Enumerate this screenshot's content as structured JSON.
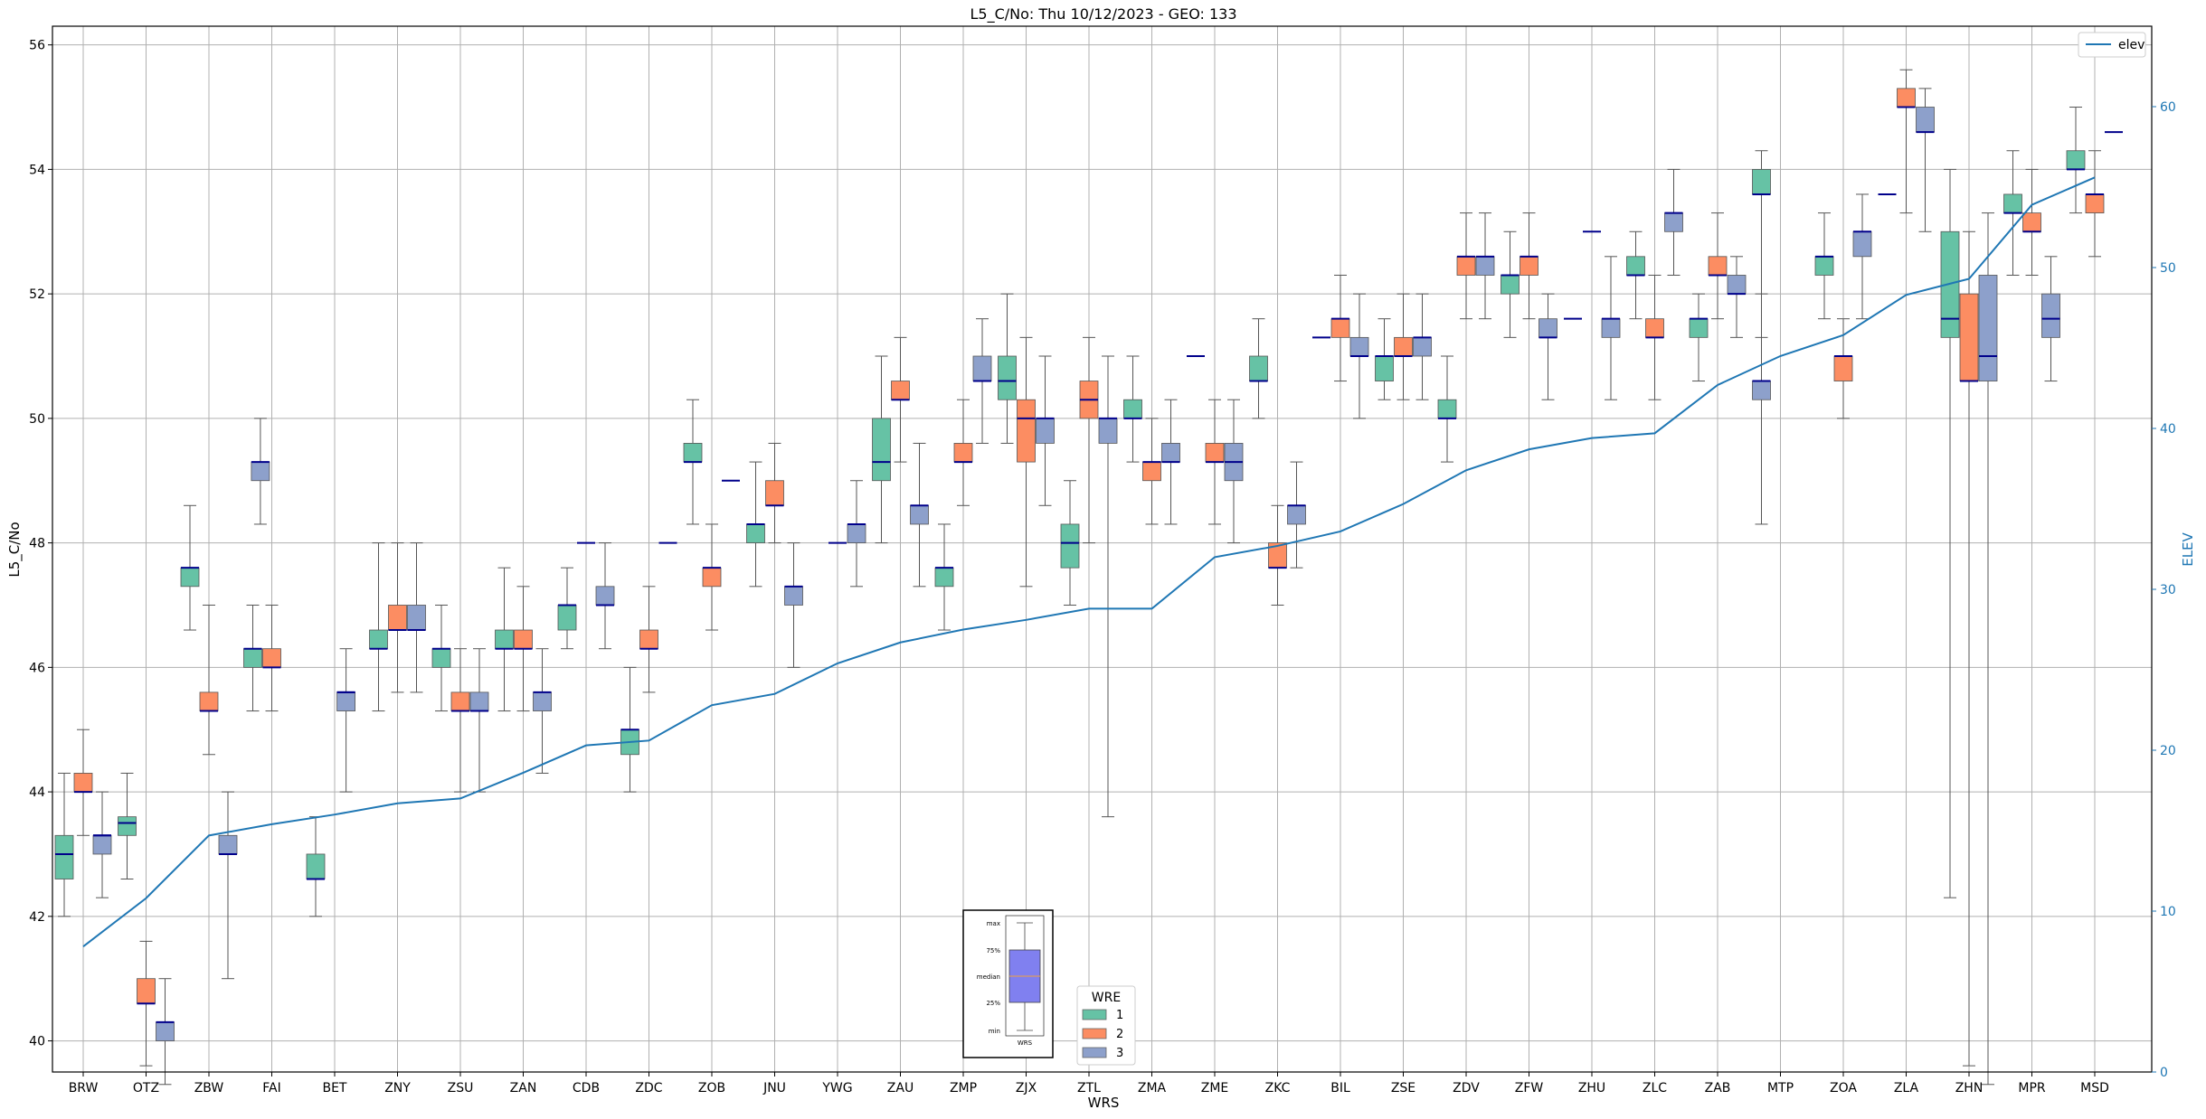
{
  "chart_data": {
    "type": "box",
    "title": "L5_C/No: Thu 10/12/2023 - GEO: 133",
    "xlabel": "WRS",
    "ylabel": "L5_C/No",
    "y2label": "ELEV",
    "ylim": [
      39.5,
      56.3
    ],
    "y2lim": [
      0,
      65
    ],
    "yticks": [
      40,
      42,
      44,
      46,
      48,
      50,
      52,
      54,
      56
    ],
    "y2ticks": [
      0,
      10,
      20,
      30,
      40,
      50,
      60
    ],
    "grid": true,
    "categories": [
      "BRW",
      "OTZ",
      "ZBW",
      "FAI",
      "BET",
      "ZNY",
      "ZSU",
      "ZAN",
      "CDB",
      "ZDC",
      "ZOB",
      "JNU",
      "YWG",
      "ZAU",
      "ZMP",
      "ZJX",
      "ZTL",
      "ZMA",
      "ZME",
      "ZKC",
      "BIL",
      "ZSE",
      "ZDV",
      "ZFW",
      "ZHU",
      "ZLC",
      "ZAB",
      "MTP",
      "ZOA",
      "ZLA",
      "ZHN",
      "MPR",
      "MSD"
    ],
    "series": [
      {
        "name": "1",
        "color": "#66c2a5",
        "boxes": [
          {
            "cat": 0,
            "pos": -0.5,
            "min": 42.0,
            "q1": 42.6,
            "med": 43.0,
            "q3": 43.3,
            "max": 44.3
          },
          {
            "cat": 1,
            "pos": -0.5,
            "min": 42.6,
            "q1": 43.3,
            "med": 43.5,
            "q3": 43.6,
            "max": 44.3
          },
          {
            "cat": 2,
            "pos": -0.5,
            "min": 46.6,
            "q1": 47.3,
            "med": 47.6,
            "q3": 47.6,
            "max": 48.6
          },
          {
            "cat": 3,
            "pos": -0.5,
            "min": 45.3,
            "q1": 46.0,
            "med": 46.3,
            "q3": 46.3,
            "max": 47.0
          },
          {
            "cat": 4,
            "pos": -0.5,
            "min": 42.0,
            "q1": 42.6,
            "med": 42.6,
            "q3": 43.0,
            "max": 43.6
          },
          {
            "cat": 5,
            "pos": -0.5,
            "min": 45.3,
            "q1": 46.3,
            "med": 46.3,
            "q3": 46.6,
            "max": 48.0
          },
          {
            "cat": 6,
            "pos": -0.5,
            "min": 45.3,
            "q1": 46.0,
            "med": 46.3,
            "q3": 46.3,
            "max": 47.0
          },
          {
            "cat": 7,
            "pos": -0.5,
            "min": 45.3,
            "q1": 46.3,
            "med": 46.3,
            "q3": 46.6,
            "max": 47.6
          },
          {
            "cat": 8,
            "pos": -0.5,
            "min": 46.3,
            "q1": 46.6,
            "med": 47.0,
            "q3": 47.0,
            "max": 47.6
          },
          {
            "cat": 9,
            "pos": -0.5,
            "min": 44.0,
            "q1": 44.6,
            "med": 45.0,
            "q3": 45.0,
            "max": 46.0
          },
          {
            "cat": 10,
            "pos": -0.5,
            "min": 48.3,
            "q1": 49.3,
            "med": 49.3,
            "q3": 49.6,
            "max": 50.3
          },
          {
            "cat": 11,
            "pos": -0.5,
            "min": 47.3,
            "q1": 48.0,
            "med": 48.3,
            "q3": 48.3,
            "max": 49.3
          },
          {
            "cat": 13,
            "pos": -0.5,
            "min": 48.0,
            "q1": 49.0,
            "med": 49.3,
            "q3": 50.0,
            "max": 51.0
          },
          {
            "cat": 14,
            "pos": -0.5,
            "min": 46.6,
            "q1": 47.3,
            "med": 47.6,
            "q3": 47.6,
            "max": 48.3
          },
          {
            "cat": 15,
            "pos": -0.5,
            "min": 49.6,
            "q1": 50.3,
            "med": 50.6,
            "q3": 51.0,
            "max": 52.0
          },
          {
            "cat": 16,
            "pos": -0.5,
            "min": 47.0,
            "q1": 47.6,
            "med": 48.0,
            "q3": 48.3,
            "max": 49.0
          },
          {
            "cat": 17,
            "pos": -0.5,
            "min": 49.3,
            "q1": 50.0,
            "med": 50.0,
            "q3": 50.3,
            "max": 51.0
          },
          {
            "cat": 19,
            "pos": -0.5,
            "min": 50.0,
            "q1": 50.6,
            "med": 50.6,
            "q3": 51.0,
            "max": 51.6
          },
          {
            "cat": 21,
            "pos": -0.5,
            "min": 50.3,
            "q1": 50.6,
            "med": 51.0,
            "q3": 51.0,
            "max": 51.6
          },
          {
            "cat": 22,
            "pos": -0.5,
            "min": 49.3,
            "q1": 50.0,
            "med": 50.0,
            "q3": 50.3,
            "max": 51.0
          },
          {
            "cat": 23,
            "pos": -0.5,
            "min": 51.3,
            "q1": 52.0,
            "med": 52.3,
            "q3": 52.3,
            "max": 53.0
          },
          {
            "cat": 25,
            "pos": -0.5,
            "min": 51.6,
            "q1": 52.3,
            "med": 52.3,
            "q3": 52.6,
            "max": 53.0
          },
          {
            "cat": 26,
            "pos": -0.5,
            "min": 50.6,
            "q1": 51.3,
            "med": 51.6,
            "q3": 51.6,
            "max": 52.0
          },
          {
            "cat": 27,
            "pos": -0.5,
            "min": 51.3,
            "q1": 53.6,
            "med": 53.6,
            "q3": 54.0,
            "max": 54.3
          },
          {
            "cat": 28,
            "pos": -0.5,
            "min": 51.6,
            "q1": 52.3,
            "med": 52.6,
            "q3": 52.6,
            "max": 53.3
          },
          {
            "cat": 30,
            "pos": -0.5,
            "min": 42.3,
            "q1": 51.3,
            "med": 51.6,
            "q3": 53.0,
            "max": 54.0
          },
          {
            "cat": 31,
            "pos": -0.5,
            "min": 52.3,
            "q1": 53.3,
            "med": 53.3,
            "q3": 53.6,
            "max": 54.3
          },
          {
            "cat": 32,
            "pos": -0.5,
            "min": 53.3,
            "q1": 54.0,
            "med": 54.0,
            "q3": 54.3,
            "max": 55.0
          }
        ]
      },
      {
        "name": "2",
        "color": "#fc8d62",
        "boxes": [
          {
            "cat": 0,
            "pos": 0,
            "min": 43.3,
            "q1": 44.0,
            "med": 44.0,
            "q3": 44.3,
            "max": 45.0
          },
          {
            "cat": 1,
            "pos": 0,
            "min": 39.6,
            "q1": 40.6,
            "med": 40.6,
            "q3": 41.0,
            "max": 41.6
          },
          {
            "cat": 2,
            "pos": 0,
            "min": 44.6,
            "q1": 45.3,
            "med": 45.3,
            "q3": 45.6,
            "max": 47.0
          },
          {
            "cat": 3,
            "pos": 0,
            "min": 45.3,
            "q1": 46.0,
            "med": 46.0,
            "q3": 46.3,
            "max": 47.0
          },
          {
            "cat": 5,
            "pos": 0,
            "min": 45.6,
            "q1": 46.6,
            "med": 46.6,
            "q3": 47.0,
            "max": 48.0
          },
          {
            "cat": 6,
            "pos": 0,
            "min": 44.0,
            "q1": 45.3,
            "med": 45.3,
            "q3": 45.6,
            "max": 46.3
          },
          {
            "cat": 7,
            "pos": 0,
            "min": 45.3,
            "q1": 46.3,
            "med": 46.3,
            "q3": 46.6,
            "max": 47.3
          },
          {
            "cat": 9,
            "pos": 0,
            "min": 45.6,
            "q1": 46.3,
            "med": 46.3,
            "q3": 46.6,
            "max": 47.3
          },
          {
            "cat": 10,
            "pos": 0,
            "min": 46.6,
            "q1": 47.3,
            "med": 47.6,
            "q3": 47.6,
            "max": 48.3
          },
          {
            "cat": 11,
            "pos": 0,
            "min": 48.0,
            "q1": 48.6,
            "med": 48.6,
            "q3": 49.0,
            "max": 49.6
          },
          {
            "cat": 13,
            "pos": 0,
            "min": 49.3,
            "q1": 50.3,
            "med": 50.3,
            "q3": 50.6,
            "max": 51.3
          },
          {
            "cat": 14,
            "pos": 0,
            "min": 48.6,
            "q1": 49.3,
            "med": 49.3,
            "q3": 49.6,
            "max": 50.3
          },
          {
            "cat": 15,
            "pos": 0,
            "min": 47.3,
            "q1": 49.3,
            "med": 50.0,
            "q3": 50.3,
            "max": 51.3
          },
          {
            "cat": 16,
            "pos": 0,
            "min": 48.0,
            "q1": 50.0,
            "med": 50.3,
            "q3": 50.6,
            "max": 51.3
          },
          {
            "cat": 17,
            "pos": 0,
            "min": 48.3,
            "q1": 49.0,
            "med": 49.3,
            "q3": 49.3,
            "max": 50.0
          },
          {
            "cat": 18,
            "pos": 0,
            "min": 48.3,
            "q1": 49.3,
            "med": 49.3,
            "q3": 49.6,
            "max": 50.3
          },
          {
            "cat": 19,
            "pos": 0,
            "min": 47.0,
            "q1": 47.6,
            "med": 47.6,
            "q3": 48.0,
            "max": 48.6
          },
          {
            "cat": 20,
            "pos": 0,
            "min": 50.6,
            "q1": 51.3,
            "med": 51.6,
            "q3": 51.6,
            "max": 52.3
          },
          {
            "cat": 21,
            "pos": 0,
            "min": 50.3,
            "q1": 51.0,
            "med": 51.0,
            "q3": 51.3,
            "max": 52.0
          },
          {
            "cat": 22,
            "pos": 0,
            "min": 51.6,
            "q1": 52.3,
            "med": 52.6,
            "q3": 52.6,
            "max": 53.3
          },
          {
            "cat": 23,
            "pos": 0,
            "min": 51.6,
            "q1": 52.3,
            "med": 52.6,
            "q3": 52.6,
            "max": 53.3
          },
          {
            "cat": 25,
            "pos": 0,
            "min": 50.3,
            "q1": 51.3,
            "med": 51.3,
            "q3": 51.6,
            "max": 52.3
          },
          {
            "cat": 26,
            "pos": 0,
            "min": 51.6,
            "q1": 52.3,
            "med": 52.3,
            "q3": 52.6,
            "max": 53.3
          },
          {
            "cat": 28,
            "pos": 0,
            "min": 50.0,
            "q1": 50.6,
            "med": 51.0,
            "q3": 51.0,
            "max": 51.6
          },
          {
            "cat": 29,
            "pos": 0,
            "min": 53.3,
            "q1": 55.0,
            "med": 55.0,
            "q3": 55.3,
            "max": 55.6
          },
          {
            "cat": 30,
            "pos": 0,
            "min": 39.6,
            "q1": 50.6,
            "med": 50.6,
            "q3": 52.0,
            "max": 53.0
          },
          {
            "cat": 31,
            "pos": 0,
            "min": 52.3,
            "q1": 53.0,
            "med": 53.0,
            "q3": 53.3,
            "max": 54.0
          },
          {
            "cat": 32,
            "pos": 0,
            "min": 52.6,
            "q1": 53.3,
            "med": 53.6,
            "q3": 53.6,
            "max": 54.3
          }
        ]
      },
      {
        "name": "3",
        "color": "#8da0cb",
        "boxes": [
          {
            "cat": 0,
            "pos": 0.5,
            "min": 42.3,
            "q1": 43.0,
            "med": 43.3,
            "q3": 43.3,
            "max": 44.0
          },
          {
            "cat": 1,
            "pos": 0.5,
            "min": 39.3,
            "q1": 40.0,
            "med": 40.3,
            "q3": 40.3,
            "max": 41.0
          },
          {
            "cat": 2,
            "pos": 0.5,
            "min": 41.0,
            "q1": 43.0,
            "med": 43.0,
            "q3": 43.3,
            "max": 44.0
          },
          {
            "cat": 3,
            "pos": -0.3,
            "min": 48.3,
            "q1": 49.0,
            "med": 49.3,
            "q3": 49.3,
            "max": 50.0
          },
          {
            "cat": 4,
            "pos": 0.3,
            "min": 44.0,
            "q1": 45.3,
            "med": 45.6,
            "q3": 45.6,
            "max": 46.3
          },
          {
            "cat": 5,
            "pos": 0.5,
            "min": 45.6,
            "q1": 46.6,
            "med": 46.6,
            "q3": 47.0,
            "max": 48.0
          },
          {
            "cat": 6,
            "pos": 0.5,
            "min": 44.0,
            "q1": 45.3,
            "med": 45.3,
            "q3": 45.6,
            "max": 46.3
          },
          {
            "cat": 7,
            "pos": 0.5,
            "min": 44.3,
            "q1": 45.3,
            "med": 45.6,
            "q3": 45.6,
            "max": 46.3
          },
          {
            "cat": 8,
            "pos": 0.5,
            "min": 46.3,
            "q1": 47.0,
            "med": 47.0,
            "q3": 47.3,
            "max": 48.0
          },
          {
            "cat": 11,
            "pos": 0.5,
            "min": 46.0,
            "q1": 47.0,
            "med": 47.3,
            "q3": 47.3,
            "max": 48.0
          },
          {
            "cat": 12,
            "pos": 0.5,
            "min": 47.3,
            "q1": 48.0,
            "med": 48.3,
            "q3": 48.3,
            "max": 49.0
          },
          {
            "cat": 13,
            "pos": 0.5,
            "min": 47.3,
            "q1": 48.3,
            "med": 48.6,
            "q3": 48.6,
            "max": 49.6
          },
          {
            "cat": 14,
            "pos": 0.5,
            "min": 49.6,
            "q1": 50.6,
            "med": 50.6,
            "q3": 51.0,
            "max": 51.6
          },
          {
            "cat": 15,
            "pos": 0.5,
            "min": 48.6,
            "q1": 49.6,
            "med": 50.0,
            "q3": 50.0,
            "max": 51.0
          },
          {
            "cat": 16,
            "pos": 0.5,
            "min": 43.6,
            "q1": 49.6,
            "med": 50.0,
            "q3": 50.0,
            "max": 51.0
          },
          {
            "cat": 17,
            "pos": 0.5,
            "min": 48.3,
            "q1": 49.3,
            "med": 49.3,
            "q3": 49.6,
            "max": 50.3
          },
          {
            "cat": 18,
            "pos": 0.5,
            "min": 48.0,
            "q1": 49.0,
            "med": 49.3,
            "q3": 49.6,
            "max": 50.3
          },
          {
            "cat": 19,
            "pos": 0.5,
            "min": 47.6,
            "q1": 48.3,
            "med": 48.6,
            "q3": 48.6,
            "max": 49.3
          },
          {
            "cat": 20,
            "pos": 0.5,
            "min": 50.0,
            "q1": 51.0,
            "med": 51.0,
            "q3": 51.3,
            "max": 52.0
          },
          {
            "cat": 21,
            "pos": 0.5,
            "min": 50.3,
            "q1": 51.0,
            "med": 51.3,
            "q3": 51.3,
            "max": 52.0
          },
          {
            "cat": 22,
            "pos": 0.5,
            "min": 51.6,
            "q1": 52.3,
            "med": 52.6,
            "q3": 52.6,
            "max": 53.3
          },
          {
            "cat": 23,
            "pos": 0.5,
            "min": 50.3,
            "q1": 51.3,
            "med": 51.3,
            "q3": 51.6,
            "max": 52.0
          },
          {
            "cat": 24,
            "pos": 0.5,
            "min": 50.3,
            "q1": 51.3,
            "med": 51.6,
            "q3": 51.6,
            "max": 52.6
          },
          {
            "cat": 25,
            "pos": 0.5,
            "min": 52.3,
            "q1": 53.0,
            "med": 53.3,
            "q3": 53.3,
            "max": 54.0
          },
          {
            "cat": 26,
            "pos": 0.5,
            "min": 51.3,
            "q1": 52.0,
            "med": 52.0,
            "q3": 52.3,
            "max": 52.6
          },
          {
            "cat": 27,
            "pos": -0.5,
            "min": 48.3,
            "q1": 50.3,
            "med": 50.6,
            "q3": 50.6,
            "max": 52.0
          },
          {
            "cat": 28,
            "pos": 0.5,
            "min": 51.6,
            "q1": 52.6,
            "med": 53.0,
            "q3": 53.0,
            "max": 53.6
          },
          {
            "cat": 29,
            "pos": 0.5,
            "min": 53.0,
            "q1": 54.6,
            "med": 54.6,
            "q3": 55.0,
            "max": 55.3
          },
          {
            "cat": 30,
            "pos": 0.5,
            "min": 39.3,
            "q1": 50.6,
            "med": 51.0,
            "q3": 52.3,
            "max": 53.3
          },
          {
            "cat": 31,
            "pos": 0.5,
            "min": 50.6,
            "q1": 51.3,
            "med": 51.6,
            "q3": 52.0,
            "max": 52.6
          }
        ]
      }
    ],
    "single_values": [
      {
        "cat": 0,
        "pos": 0.5,
        "value": 43.3
      },
      {
        "cat": 4,
        "pos": 0.3,
        "value": 45.6
      },
      {
        "cat": 8,
        "pos": 0,
        "value": 48.0
      },
      {
        "cat": 9,
        "pos": 0.5,
        "value": 48.0
      },
      {
        "cat": 10,
        "pos": 0.5,
        "value": 49.0
      },
      {
        "cat": 12,
        "pos": 0,
        "value": 48.0
      },
      {
        "cat": 18,
        "pos": -0.5,
        "value": 51.0
      },
      {
        "cat": 20,
        "pos": -0.5,
        "value": 51.3
      },
      {
        "cat": 24,
        "pos": -0.5,
        "value": 51.6
      },
      {
        "cat": 24,
        "pos": 0,
        "value": 53.0
      },
      {
        "cat": 29,
        "pos": -0.5,
        "value": 53.6
      },
      {
        "cat": 32,
        "pos": 0.5,
        "value": 54.6
      }
    ],
    "elev": {
      "name": "elev",
      "color": "#1f77b4",
      "values": [
        7.8,
        10.8,
        14.7,
        15.4,
        16.0,
        16.7,
        17.0,
        18.6,
        20.3,
        20.6,
        22.8,
        23.5,
        25.4,
        26.7,
        27.5,
        28.1,
        28.8,
        28.8,
        32.0,
        32.7,
        33.6,
        35.3,
        37.4,
        38.7,
        39.4,
        39.7,
        42.7,
        44.5,
        45.8,
        48.3,
        49.3,
        53.9,
        55.6
      ]
    },
    "legend_top_right": "elev",
    "legend_wre": {
      "title": "WRE",
      "entries": [
        "1",
        "2",
        "3"
      ]
    },
    "inset_legend": {
      "labels": [
        "max",
        "75%",
        "median",
        "25%",
        "min"
      ],
      "xlabel": "WRS"
    }
  }
}
